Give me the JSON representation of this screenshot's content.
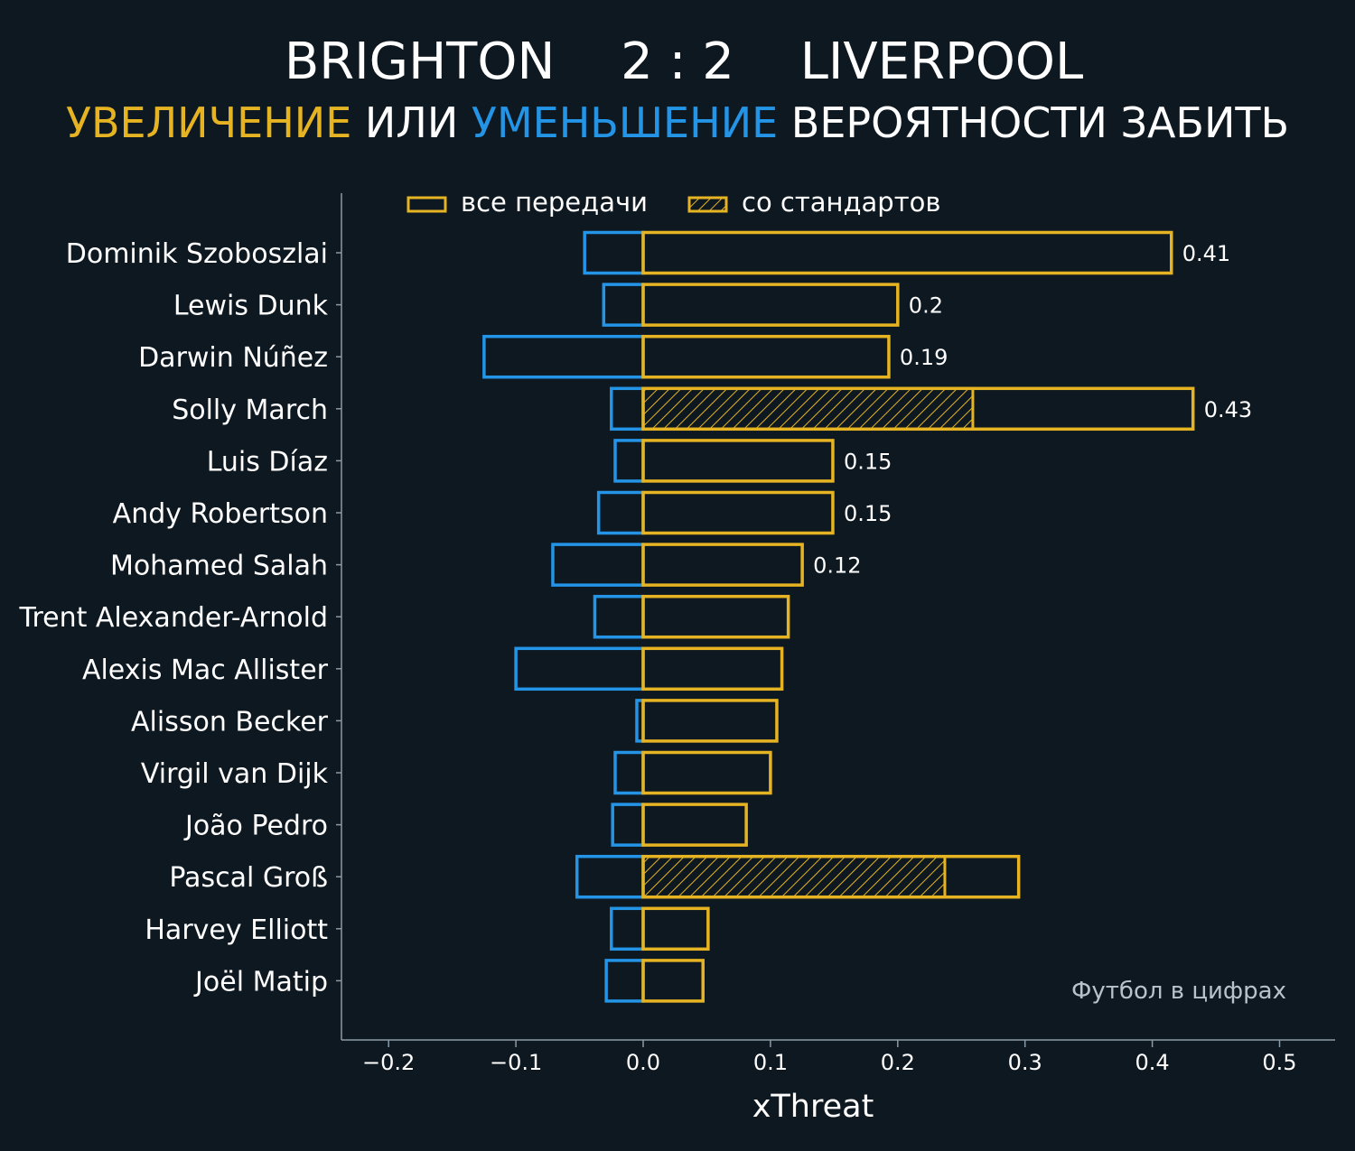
{
  "header": {
    "home_team": "BRIGHTON",
    "score": "2 : 2",
    "away_team": "LIVERPOOL",
    "subtitle_part1": "УВЕЛИЧЕНИЕ",
    "subtitle_part2": " ИЛИ ",
    "subtitle_part3": "УМЕНЬШЕНИЕ",
    "subtitle_part4": " ВЕРОЯТНОСТИ ЗАБИТЬ"
  },
  "legend": {
    "all_passes": "все передачи",
    "set_pieces": "со стандартов"
  },
  "watermark": "Футбол в цифрах",
  "colors": {
    "background": "#0e1821",
    "positive": "#e6b422",
    "negative": "#2394e6",
    "axis": "#8a9aa6"
  },
  "chart_data": {
    "type": "bar",
    "orientation": "horizontal",
    "xlabel": "xThreat",
    "xlim": [
      -0.24,
      0.54
    ],
    "xticks": [
      -0.2,
      -0.1,
      0.0,
      0.1,
      0.2,
      0.3,
      0.4,
      0.5
    ],
    "xtick_labels": [
      "−0.2",
      "−0.1",
      "0.0",
      "0.1",
      "0.2",
      "0.3",
      "0.4",
      "0.5"
    ],
    "categories": [
      "Dominik Szoboszlai",
      "Lewis Dunk",
      "Darwin Núñez",
      "Solly March",
      "Luis Díaz",
      "Andy Robertson",
      "Mohamed Salah",
      "Trent Alexander-Arnold",
      "Alexis Mac Allister",
      "Alisson Becker",
      "Virgil van Dijk",
      "João Pedro",
      "Pascal Groß",
      "Harvey Elliott",
      "Joël Matip"
    ],
    "series": [
      {
        "name": "все передачи",
        "positive": [
          0.415,
          0.2,
          0.193,
          0.432,
          0.149,
          0.149,
          0.125,
          0.114,
          0.109,
          0.105,
          0.1,
          0.081,
          0.295,
          0.051,
          0.047
        ],
        "negative": [
          -0.046,
          -0.031,
          -0.125,
          -0.025,
          -0.022,
          -0.035,
          -0.071,
          -0.038,
          -0.1,
          -0.005,
          -0.022,
          -0.024,
          -0.052,
          -0.025,
          -0.029
        ]
      },
      {
        "name": "со стандартов",
        "positive": [
          0,
          0,
          0,
          0.259,
          0,
          0,
          0,
          0,
          0,
          0,
          0,
          0,
          0.237,
          0,
          0
        ]
      }
    ],
    "value_labels": [
      "0.41",
      "0.2",
      "0.19",
      "0.43",
      "0.15",
      "0.15",
      "0.12",
      "",
      "",
      "",
      "",
      "",
      "",
      "",
      ""
    ]
  }
}
